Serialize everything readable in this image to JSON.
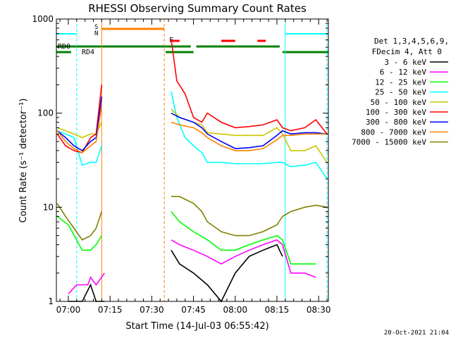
{
  "chart_data": {
    "type": "line",
    "title": "RHESSI Observing Summary Count Rates",
    "xlabel": "Start Time (14-Jul-03 06:55:42)",
    "ylabel": "Count Rate (s⁻¹ detector⁻¹)",
    "y_scale": "log",
    "ylim": [
      1,
      1000
    ],
    "xlim": [
      "06:55:42",
      "08:33:30"
    ],
    "x_ticks": [
      "07:00",
      "07:15",
      "07:30",
      "07:45",
      "08:00",
      "08:15",
      "08:30"
    ],
    "y_ticks": [
      "1",
      "10",
      "100",
      "1000"
    ],
    "legend": {
      "header": [
        "Det 1,3,4,5,6,9,",
        "FDecim 4, Att 0"
      ],
      "placement": "right"
    },
    "footer_date": "20-Oct-2021 21:04",
    "flags": [
      {
        "label": "RD0",
        "color": "#008000"
      },
      {
        "label": "RD4",
        "color": "#008000"
      },
      {
        "label": "S",
        "color": "#ff8000"
      },
      {
        "label": "N",
        "color": "#00ffff"
      },
      {
        "label": "F",
        "color": "#ff0000"
      }
    ],
    "series": [
      {
        "name": "3 - 6 keV",
        "color": "#000000",
        "x": [
          "07:00",
          "07:05",
          "07:08",
          "07:10",
          "07:13",
          "07:37",
          "07:40",
          "07:45",
          "07:50",
          "07:55",
          "08:00",
          "08:05",
          "08:10",
          "08:15",
          "08:17"
        ],
        "y": [
          1.0,
          1.0,
          1.5,
          1.0,
          1.0,
          3.5,
          2.5,
          2.0,
          1.5,
          1.0,
          2.0,
          3.0,
          3.5,
          4.0,
          3.0
        ]
      },
      {
        "name": "6 - 12 keV",
        "color": "#ff00ff",
        "x": [
          "07:00",
          "07:03",
          "07:05",
          "07:07",
          "07:08",
          "07:10",
          "07:13",
          "07:37",
          "07:40",
          "07:45",
          "07:50",
          "07:55",
          "08:00",
          "08:05",
          "08:10",
          "08:15",
          "08:17",
          "08:20",
          "08:25",
          "08:29"
        ],
        "y": [
          1.2,
          1.5,
          1.5,
          1.5,
          1.8,
          1.5,
          2.0,
          4.5,
          4.0,
          3.5,
          3.0,
          2.5,
          3.0,
          3.5,
          4.0,
          4.5,
          4.0,
          2.0,
          2.0,
          1.8
        ]
      },
      {
        "name": "12 - 25 keV",
        "color": "#00ff00",
        "x": [
          "06:56",
          "07:00",
          "07:05",
          "07:08",
          "07:10",
          "07:12",
          "07:37",
          "07:40",
          "07:45",
          "07:50",
          "07:55",
          "08:00",
          "08:05",
          "08:10",
          "08:15",
          "08:17",
          "08:20",
          "08:25",
          "08:29"
        ],
        "y": [
          8.0,
          6.5,
          3.5,
          3.5,
          4.0,
          5.0,
          9.0,
          7.0,
          5.5,
          4.5,
          3.5,
          3.5,
          4.0,
          4.5,
          5.0,
          4.5,
          2.5,
          2.5,
          2.5
        ]
      },
      {
        "name": "25 - 50 keV",
        "color": "#00ffff",
        "x": [
          "06:56",
          "06:59",
          "07:02",
          "07:05",
          "07:08",
          "07:10",
          "07:12",
          "07:37",
          "07:39",
          "07:42",
          "07:45",
          "07:48",
          "07:50",
          "07:55",
          "08:00",
          "08:05",
          "08:10",
          "08:15",
          "08:17",
          "08:20",
          "08:25",
          "08:29",
          "08:33"
        ],
        "y": [
          65,
          60,
          55,
          28,
          30,
          30,
          45,
          170,
          90,
          55,
          45,
          38,
          30,
          30,
          29,
          29,
          29,
          30,
          30,
          27,
          28,
          30,
          20
        ]
      },
      {
        "name": "50 - 100 keV",
        "color": "#c8c800",
        "x": [
          "06:56",
          "06:59",
          "07:02",
          "07:05",
          "07:08",
          "07:10",
          "07:12",
          "07:37",
          "07:40",
          "07:45",
          "07:48",
          "07:50",
          "07:55",
          "08:00",
          "08:05",
          "08:10",
          "08:15",
          "08:17",
          "08:20",
          "08:25",
          "08:29",
          "08:33"
        ],
        "y": [
          70,
          65,
          60,
          55,
          60,
          60,
          80,
          110,
          90,
          80,
          75,
          62,
          60,
          58,
          58,
          58,
          70,
          60,
          40,
          40,
          45,
          30
        ]
      },
      {
        "name": "100 - 300 keV",
        "color": "#ff0000",
        "x": [
          "06:56",
          "06:59",
          "07:02",
          "07:05",
          "07:08",
          "07:10",
          "07:12",
          "07:37",
          "07:39",
          "07:42",
          "07:45",
          "07:48",
          "07:50",
          "07:55",
          "08:00",
          "08:05",
          "08:10",
          "08:15",
          "08:17",
          "08:20",
          "08:25",
          "08:29",
          "08:33"
        ],
        "y": [
          60,
          45,
          40,
          38,
          55,
          60,
          200,
          600,
          220,
          160,
          90,
          80,
          100,
          80,
          70,
          72,
          75,
          85,
          70,
          65,
          70,
          85,
          60
        ]
      },
      {
        "name": "300 - 800 keV",
        "color": "#0000ff",
        "x": [
          "06:56",
          "06:59",
          "07:02",
          "07:05",
          "07:08",
          "07:10",
          "07:12",
          "07:37",
          "07:40",
          "07:45",
          "07:48",
          "07:50",
          "07:55",
          "08:00",
          "08:05",
          "08:10",
          "08:15",
          "08:17",
          "08:20",
          "08:25",
          "08:29",
          "08:33"
        ],
        "y": [
          65,
          55,
          45,
          40,
          50,
          55,
          150,
          100,
          90,
          80,
          70,
          60,
          50,
          42,
          43,
          45,
          58,
          65,
          60,
          62,
          62,
          60
        ]
      },
      {
        "name": "800 - 7000 keV",
        "color": "#ff8000",
        "x": [
          "06:56",
          "06:59",
          "07:02",
          "07:05",
          "07:08",
          "07:10",
          "07:12",
          "07:37",
          "07:40",
          "07:45",
          "07:48",
          "07:50",
          "07:55",
          "08:00",
          "08:05",
          "08:10",
          "08:15",
          "08:17",
          "08:20",
          "08:25",
          "08:29",
          "08:33"
        ],
        "y": [
          65,
          50,
          42,
          38,
          45,
          50,
          120,
          80,
          75,
          70,
          62,
          55,
          45,
          40,
          40,
          42,
          52,
          58,
          58,
          60,
          60,
          60
        ]
      },
      {
        "name": "7000 - 15000 keV",
        "color": "#808000",
        "x": [
          "06:56",
          "06:59",
          "07:02",
          "07:05",
          "07:08",
          "07:10",
          "07:12",
          "07:37",
          "07:40",
          "07:45",
          "07:48",
          "07:50",
          "07:55",
          "08:00",
          "08:05",
          "08:10",
          "08:15",
          "08:17",
          "08:20",
          "08:25",
          "08:29",
          "08:33"
        ],
        "y": [
          11,
          8,
          6,
          4.5,
          5,
          6,
          9,
          13,
          13,
          11,
          9,
          7,
          5.5,
          5,
          5,
          5.5,
          6.5,
          8,
          9,
          10,
          10.5,
          10
        ]
      }
    ]
  }
}
